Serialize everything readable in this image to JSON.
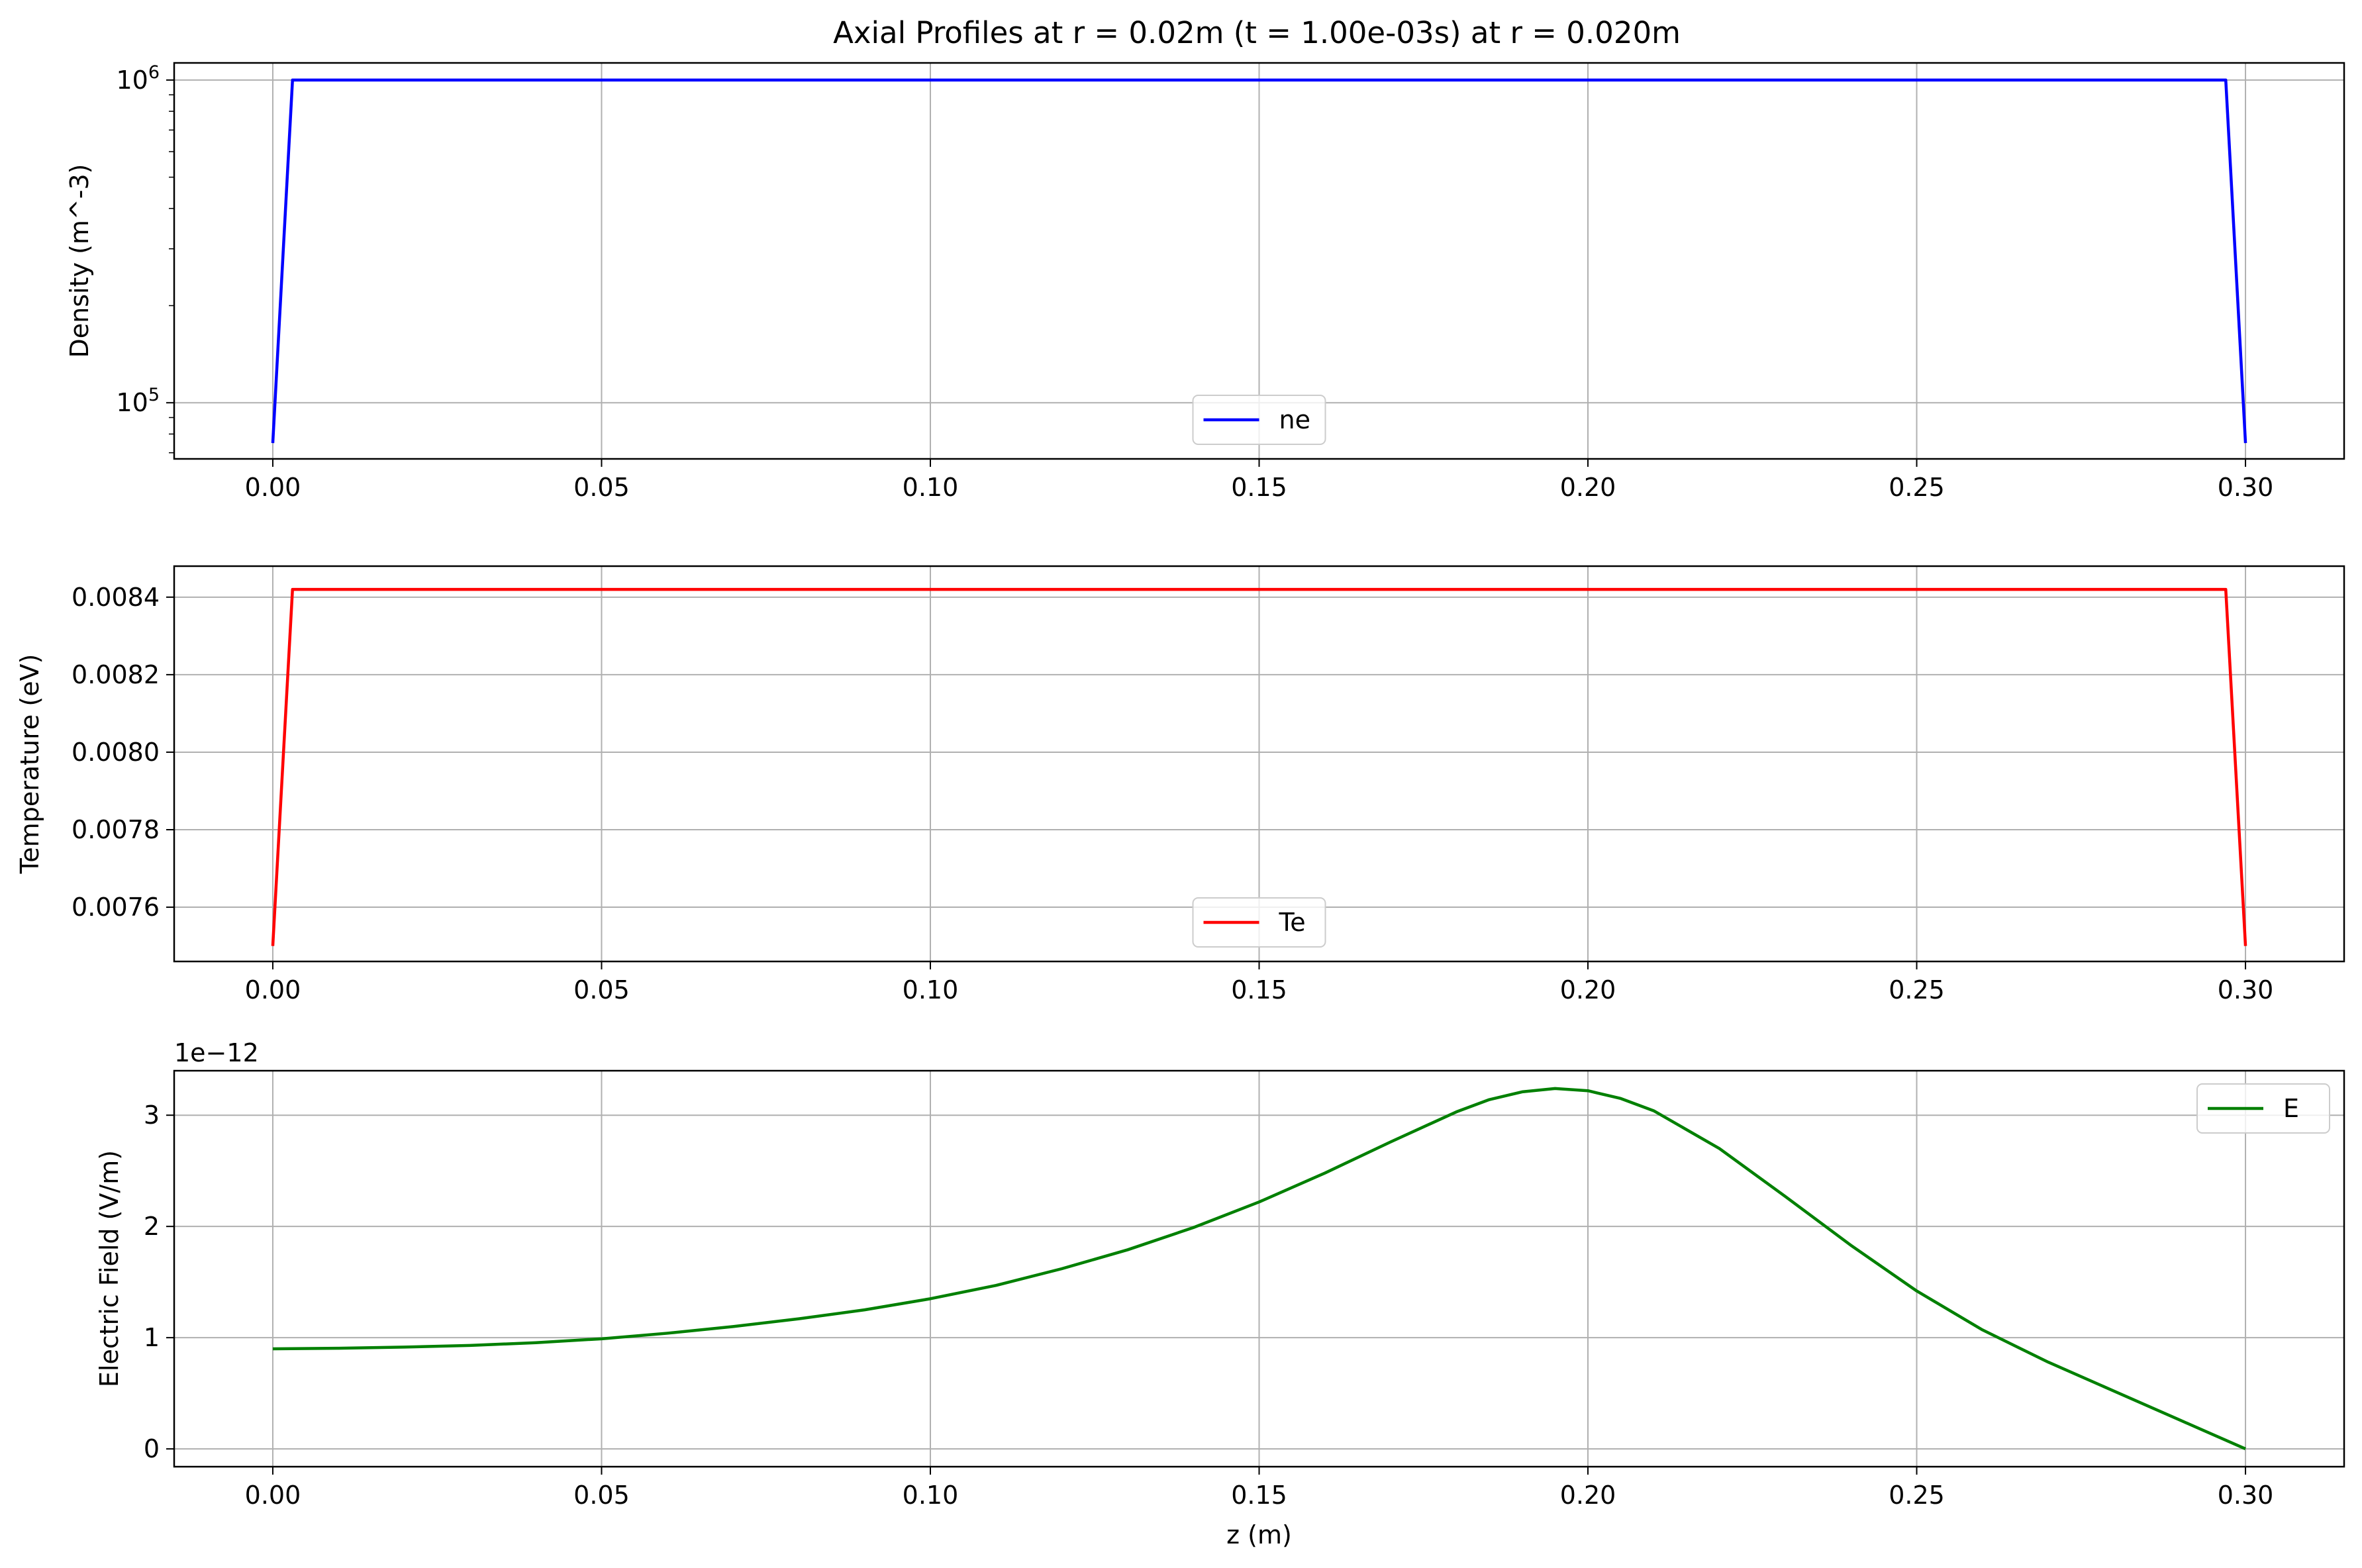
{
  "figure_title": "Axial Profiles at r = 0.02m (t = 1.00e-03s) at r = 0.020m",
  "colors": {
    "ne": "#0000ff",
    "Te": "#ff0000",
    "E": "#008000",
    "grid": "#b0b0b0",
    "axes": "#000000"
  },
  "chart_data": [
    {
      "type": "line",
      "xlabel": "",
      "ylabel": "Density (m^-3)",
      "yscale": "log",
      "xlim": [
        -0.015,
        0.315
      ],
      "ylim": [
        67000,
        1130000
      ],
      "grid": true,
      "legend_position": "lower center",
      "x_ticks": [
        0,
        0.05,
        0.1,
        0.15,
        0.2,
        0.25,
        0.3
      ],
      "x_tick_labels": [
        "0.00",
        "0.05",
        "0.10",
        "0.15",
        "0.20",
        "0.25",
        "0.30"
      ],
      "y_ticks": [
        100000,
        1000000
      ],
      "y_tick_labels": [
        {
          "base": "10",
          "exp": "5"
        },
        {
          "base": "10",
          "exp": "6"
        }
      ],
      "series": [
        {
          "name": "ne",
          "color": "#0000ff",
          "x": [
            0.0,
            0.003,
            0.297,
            0.3
          ],
          "y": [
            75000,
            1000000,
            1000000,
            75000
          ]
        }
      ]
    },
    {
      "type": "line",
      "xlabel": "",
      "ylabel": "Temperature (eV)",
      "yscale": "linear",
      "xlim": [
        -0.015,
        0.315
      ],
      "ylim": [
        0.00746,
        0.00848
      ],
      "grid": true,
      "legend_position": "lower center",
      "x_ticks": [
        0,
        0.05,
        0.1,
        0.15,
        0.2,
        0.25,
        0.3
      ],
      "x_tick_labels": [
        "0.00",
        "0.05",
        "0.10",
        "0.15",
        "0.20",
        "0.25",
        "0.30"
      ],
      "y_ticks": [
        0.0076,
        0.0078,
        0.008,
        0.0082,
        0.0084
      ],
      "y_tick_labels": [
        "0.0076",
        "0.0078",
        "0.0080",
        "0.0082",
        "0.0084"
      ],
      "series": [
        {
          "name": "Te",
          "color": "#ff0000",
          "x": [
            0.0,
            0.003,
            0.297,
            0.3
          ],
          "y": [
            0.0075,
            0.00842,
            0.00842,
            0.0075
          ]
        }
      ]
    },
    {
      "type": "line",
      "xlabel": "z (m)",
      "ylabel": "Electric Field (V/m)",
      "yscale": "linear",
      "offset_text": "1e−12",
      "xlim": [
        -0.015,
        0.315
      ],
      "ylim": [
        -0.16,
        3.4
      ],
      "grid": true,
      "legend_position": "upper right",
      "x_ticks": [
        0,
        0.05,
        0.1,
        0.15,
        0.2,
        0.25,
        0.3
      ],
      "x_tick_labels": [
        "0.00",
        "0.05",
        "0.10",
        "0.15",
        "0.20",
        "0.25",
        "0.30"
      ],
      "y_ticks": [
        0,
        1,
        2,
        3
      ],
      "y_tick_labels": [
        "0",
        "1",
        "2",
        "3"
      ],
      "series": [
        {
          "name": "E",
          "color": "#008000",
          "x": [
            0.0,
            0.01,
            0.02,
            0.03,
            0.04,
            0.05,
            0.06,
            0.07,
            0.08,
            0.09,
            0.1,
            0.11,
            0.12,
            0.13,
            0.14,
            0.15,
            0.16,
            0.17,
            0.18,
            0.185,
            0.19,
            0.195,
            0.2,
            0.205,
            0.21,
            0.22,
            0.23,
            0.24,
            0.25,
            0.26,
            0.27,
            0.28,
            0.29,
            0.3
          ],
          "y": [
            0.9,
            0.905,
            0.915,
            0.93,
            0.955,
            0.99,
            1.04,
            1.1,
            1.17,
            1.25,
            1.35,
            1.47,
            1.62,
            1.79,
            1.99,
            2.22,
            2.48,
            2.76,
            3.03,
            3.14,
            3.21,
            3.24,
            3.22,
            3.15,
            3.04,
            2.7,
            2.27,
            1.83,
            1.42,
            1.07,
            0.78,
            0.52,
            0.26,
            0.0
          ]
        }
      ]
    }
  ]
}
